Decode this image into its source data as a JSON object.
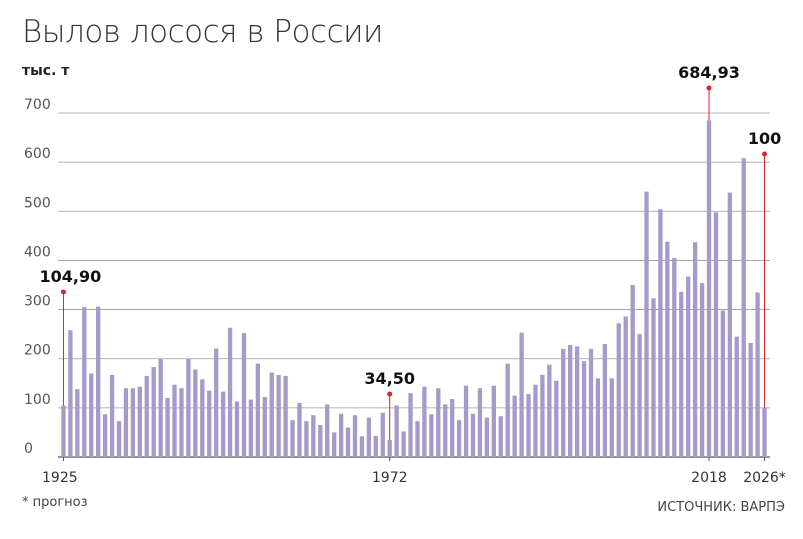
{
  "chart_data": {
    "type": "bar",
    "title": "Вылов лосося в России",
    "unit": "тыс. т",
    "footnote": "* прогноз",
    "source": "ИСТОЧНИК: ВАРПЭ",
    "y_ticks": [
      "0",
      "100",
      "200",
      "300",
      "400",
      "500",
      "600",
      "700"
    ],
    "ylim": [
      0,
      700
    ],
    "grid": true,
    "bar_color": "#a59ac8",
    "grid_color": "#9a9a9a",
    "marker_color": "#d6262b",
    "x_ticks": [
      {
        "label": "1925",
        "year": 1925
      },
      {
        "label": "1972",
        "year": 1972
      },
      {
        "label": "2018",
        "year": 2018
      },
      {
        "label": "2026*",
        "year": 2026
      }
    ],
    "x": [
      1925,
      1926,
      1927,
      1928,
      1929,
      1930,
      1931,
      1932,
      1933,
      1934,
      1935,
      1936,
      1937,
      1938,
      1939,
      1940,
      1941,
      1942,
      1943,
      1944,
      1945,
      1946,
      1947,
      1948,
      1949,
      1950,
      1951,
      1952,
      1953,
      1954,
      1955,
      1956,
      1957,
      1958,
      1959,
      1960,
      1961,
      1962,
      1963,
      1964,
      1965,
      1966,
      1967,
      1968,
      1969,
      1970,
      1971,
      1972,
      1973,
      1974,
      1975,
      1976,
      1977,
      1978,
      1979,
      1980,
      1981,
      1982,
      1983,
      1984,
      1985,
      1986,
      1987,
      1988,
      1989,
      1990,
      1991,
      1992,
      1993,
      1994,
      1995,
      1996,
      1997,
      1998,
      1999,
      2000,
      2001,
      2002,
      2003,
      2004,
      2005,
      2006,
      2007,
      2008,
      2009,
      2010,
      2011,
      2012,
      2013,
      2014,
      2015,
      2016,
      2017,
      2018,
      2019,
      2020,
      2021,
      2022,
      2023,
      2024,
      2025,
      2026
    ],
    "values": [
      104.9,
      258,
      138,
      305,
      170,
      306,
      87,
      167,
      73,
      140,
      140,
      143,
      165,
      183,
      200,
      120,
      147,
      140,
      200,
      178,
      158,
      135,
      221,
      133,
      263,
      113,
      252,
      117,
      190,
      122,
      172,
      167,
      165,
      75,
      110,
      73,
      85,
      65,
      107,
      50,
      88,
      60,
      85,
      42,
      80,
      43,
      90,
      34.5,
      105,
      52,
      130,
      73,
      143,
      87,
      140,
      107,
      118,
      75,
      145,
      88,
      140,
      80,
      145,
      83,
      190,
      125,
      253,
      128,
      147,
      167,
      188,
      155,
      220,
      228,
      225,
      195,
      220,
      160,
      230,
      160,
      272,
      286,
      350,
      250,
      540,
      323,
      504,
      438,
      405,
      336,
      367,
      437,
      354,
      684.93,
      498,
      298,
      538,
      245,
      608,
      232,
      335,
      100
    ],
    "annotations": [
      {
        "label": "104,90",
        "year": 1925,
        "value": 104.9
      },
      {
        "label": "34,50",
        "year": 1972,
        "value": 34.5
      },
      {
        "label": "684,93",
        "year": 2018,
        "value": 684.93
      },
      {
        "label": "100",
        "year": 2026,
        "value": 100
      }
    ]
  }
}
